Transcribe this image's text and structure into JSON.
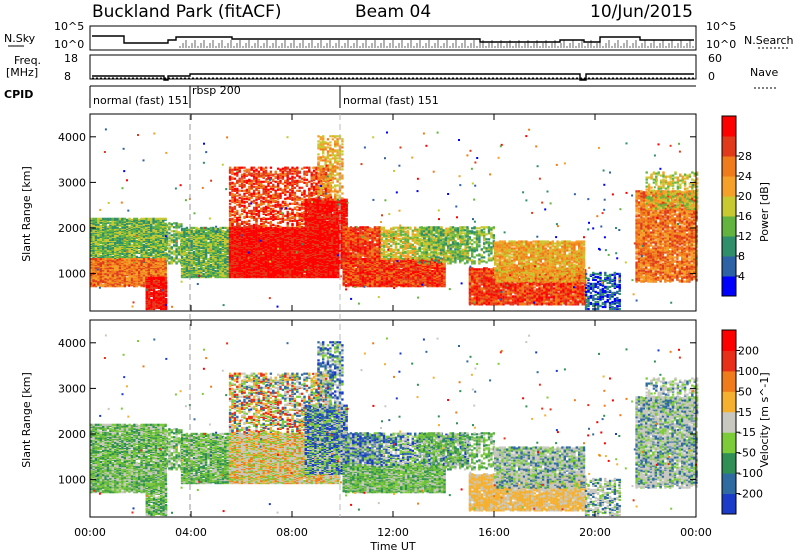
{
  "header": {
    "station": "Buckland Park (fitACF)",
    "beam": "Beam 04",
    "date": "10/Jun/2015"
  },
  "side_labels": {
    "nsky": "N.Sky",
    "nsearch": "N.Search",
    "freq": "Freq.",
    "freq_unit": "[MHz]",
    "nave": "Nave",
    "cpid": "CPID"
  },
  "top_panels": {
    "nsky_ticks": [
      "10^5",
      "10^0"
    ],
    "nsearch_ticks": [
      "10^5",
      "10^0"
    ],
    "freq_ticks": [
      "18",
      "8"
    ],
    "nave_ticks": [
      "60",
      "0"
    ]
  },
  "cpid_labels": [
    "normal (fast) 151",
    "rbsp 200",
    "normal (fast) 151"
  ],
  "chart_data": [
    {
      "type": "heatmap",
      "name": "power",
      "ylabel": "Slant Range [km]",
      "xlabel": "Time UT",
      "x_ticks": [
        "00:00",
        "04:00",
        "08:00",
        "12:00",
        "16:00",
        "20:00",
        "00:00"
      ],
      "x_range_hours": [
        0,
        24
      ],
      "y_ticks": [
        1000,
        2000,
        3000,
        4000
      ],
      "y_range_km": [
        180,
        4500
      ],
      "colorbar": {
        "label": "Power [dB]",
        "ticks": [
          4,
          8,
          12,
          16,
          20,
          24,
          28
        ],
        "colors": [
          "#0000ff",
          "#2d62a6",
          "#2f8f6a",
          "#62b43f",
          "#c8c830",
          "#f5a028",
          "#f07b1a",
          "#e03a1a",
          "#ff0000"
        ]
      }
    },
    {
      "type": "heatmap",
      "name": "velocity",
      "ylabel": "Slant Range [km]",
      "xlabel": "Time UT",
      "x_ticks": [
        "00:00",
        "04:00",
        "08:00",
        "12:00",
        "16:00",
        "20:00",
        "00:00"
      ],
      "x_range_hours": [
        0,
        24
      ],
      "y_ticks": [
        1000,
        2000,
        3000,
        4000
      ],
      "y_range_km": [
        180,
        4500
      ],
      "colorbar": {
        "label": "Velocity [m s^-1]",
        "ticks": [
          200,
          100,
          50,
          15,
          -15,
          -50,
          -100,
          -200
        ],
        "colors": [
          "#1a3cc8",
          "#2f6aa0",
          "#2f8f55",
          "#7ccc3a",
          "#c8c8c0",
          "#f5b030",
          "#f07b1a",
          "#e83018",
          "#ff0000"
        ]
      }
    }
  ],
  "xaxis_title": "Time UT"
}
